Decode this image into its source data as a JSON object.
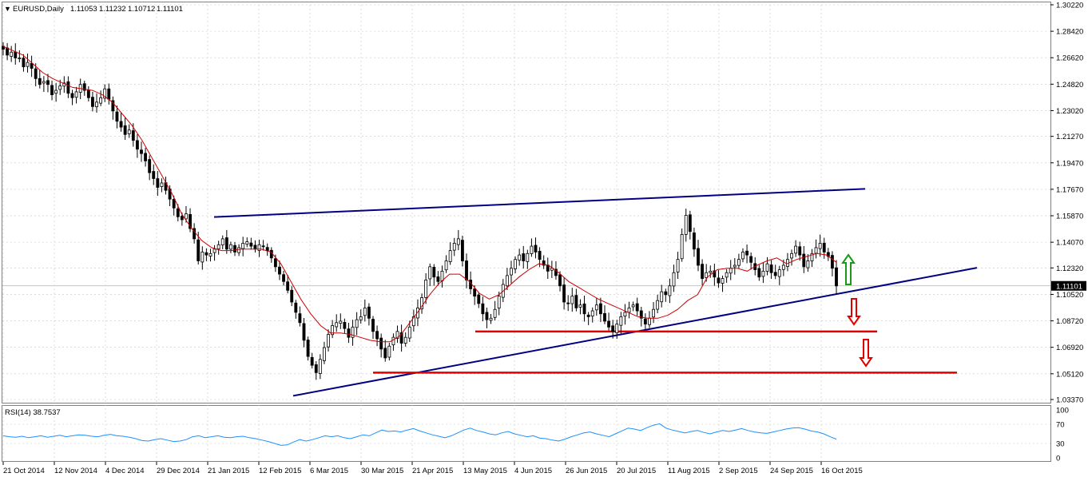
{
  "header": {
    "menu_glyph": "▼",
    "symbol": "EURUSD,Daily",
    "open": "1.11053",
    "high": "1.11232",
    "low": "1.10712",
    "close": "1.11101"
  },
  "rsi_panel": {
    "label": "RSI(14) 38.7537",
    "levels": [
      "100",
      "70",
      "30",
      "0"
    ]
  },
  "chart_data": [
    {
      "type": "candlestick",
      "symbol": "EURUSD",
      "timeframe": "Daily",
      "ylim": [
        1.0337,
        1.3022
      ],
      "y_ticks": [
        "1.30220",
        "1.28420",
        "1.26620",
        "1.24820",
        "1.23020",
        "1.21270",
        "1.19470",
        "1.17670",
        "1.15870",
        "1.14070",
        "1.12320",
        "1.10520",
        "1.08720",
        "1.06920",
        "1.05120",
        "1.03370"
      ],
      "current_price_label": "1.11101",
      "current_price": 1.11101,
      "x_ticks": [
        "21 Oct 2014",
        "12 Nov 2014",
        "4 Dec 2014",
        "29 Dec 2014",
        "21 Jan 2015",
        "12 Feb 2015",
        "6 Mar 2015",
        "30 Mar 2015",
        "21 Apr 2015",
        "13 May 2015",
        "4 Jun 2015",
        "26 Jun 2015",
        "20 Jul 2015",
        "11 Aug 2015",
        "2 Sep 2015",
        "24 Sep 2015",
        "16 Oct 2015"
      ],
      "colors": {
        "candle": "#000000",
        "moving_average": "#cc0000",
        "trendline": "#000080",
        "support": "#e00000",
        "arrow_up": "#1a9a1a",
        "arrow_down": "#e00000",
        "grid": "#c8c8c8"
      },
      "grid": true,
      "series": [
        {
          "role": "candles",
          "approx_close": [
            1.272,
            1.268,
            1.27,
            1.266,
            1.266,
            1.26,
            1.263,
            1.259,
            1.252,
            1.248,
            1.25,
            1.248,
            1.241,
            1.244,
            1.247,
            1.249,
            1.242,
            1.239,
            1.243,
            1.248,
            1.244,
            1.239,
            1.233,
            1.236,
            1.239,
            1.245,
            1.238,
            1.23,
            1.223,
            1.219,
            1.214,
            1.217,
            1.21,
            1.204,
            1.201,
            1.196,
            1.188,
            1.184,
            1.178,
            1.181,
            1.176,
            1.17,
            1.164,
            1.158,
            1.156,
            1.16,
            1.15,
            1.143,
            1.128,
            1.134,
            1.132,
            1.133,
            1.136,
            1.139,
            1.143,
            1.136,
            1.139,
            1.134,
            1.137,
            1.14,
            1.141,
            1.138,
            1.136,
            1.139,
            1.138,
            1.135,
            1.13,
            1.124,
            1.119,
            1.114,
            1.108,
            1.1,
            1.093,
            1.086,
            1.074,
            1.063,
            1.057,
            1.052,
            1.061,
            1.069,
            1.078,
            1.084,
            1.086,
            1.087,
            1.082,
            1.076,
            1.083,
            1.088,
            1.09,
            1.096,
            1.089,
            1.08,
            1.075,
            1.068,
            1.062,
            1.07,
            1.076,
            1.08,
            1.072,
            1.076,
            1.083,
            1.09,
            1.096,
            1.103,
            1.115,
            1.124,
            1.117,
            1.114,
            1.121,
            1.128,
            1.135,
            1.14,
            1.143,
            1.128,
            1.115,
            1.109,
            1.104,
            1.099,
            1.092,
            1.088,
            1.089,
            1.095,
            1.104,
            1.112,
            1.118,
            1.123,
            1.129,
            1.132,
            1.128,
            1.133,
            1.138,
            1.134,
            1.129,
            1.125,
            1.121,
            1.123,
            1.118,
            1.111,
            1.1,
            1.099,
            1.104,
            1.096,
            1.098,
            1.092,
            1.09,
            1.094,
            1.098,
            1.092,
            1.087,
            1.083,
            1.08,
            1.085,
            1.09,
            1.093,
            1.096,
            1.098,
            1.094,
            1.089,
            1.085,
            1.089,
            1.095,
            1.101,
            1.107,
            1.105,
            1.111,
            1.12,
            1.129,
            1.146,
            1.159,
            1.148,
            1.136,
            1.125,
            1.116,
            1.12,
            1.121,
            1.117,
            1.113,
            1.116,
            1.12,
            1.123,
            1.125,
            1.129,
            1.134,
            1.132,
            1.127,
            1.122,
            1.117,
            1.121,
            1.126,
            1.12,
            1.118,
            1.122,
            1.125,
            1.129,
            1.133,
            1.138,
            1.132,
            1.124,
            1.128,
            1.133,
            1.137,
            1.14,
            1.134,
            1.131,
            1.123,
            1.111
          ]
        },
        {
          "role": "moving_average",
          "approx_values": [
            1.274,
            1.271,
            1.268,
            1.262,
            1.256,
            1.252,
            1.249,
            1.246,
            1.245,
            1.244,
            1.241,
            1.236,
            1.228,
            1.22,
            1.21,
            1.198,
            1.186,
            1.174,
            1.16,
            1.15,
            1.142,
            1.137,
            1.135,
            1.135,
            1.136,
            1.136,
            1.136,
            1.134,
            1.126,
            1.114,
            1.102,
            1.092,
            1.084,
            1.079,
            1.079,
            1.078,
            1.076,
            1.074,
            1.073,
            1.073,
            1.077,
            1.086,
            1.095,
            1.105,
            1.113,
            1.119,
            1.119,
            1.114,
            1.106,
            1.102,
            1.105,
            1.111,
            1.117,
            1.122,
            1.126,
            1.125,
            1.12,
            1.114,
            1.11,
            1.106,
            1.102,
            1.099,
            1.096,
            1.093,
            1.09,
            1.089,
            1.089,
            1.091,
            1.095,
            1.101,
            1.105,
            1.117,
            1.122,
            1.123,
            1.123,
            1.121,
            1.125,
            1.128,
            1.13,
            1.126,
            1.129,
            1.131,
            1.133,
            1.132,
            1.127
          ]
        },
        {
          "role": "rsi",
          "name": "RSI(14)",
          "approx_values": [
            46,
            44,
            43,
            45,
            42,
            44,
            46,
            43,
            45,
            47,
            44,
            46,
            48,
            47,
            45,
            44,
            47,
            49,
            46,
            45,
            43,
            40,
            36,
            35,
            38,
            40,
            37,
            34,
            35,
            38,
            44,
            46,
            42,
            44,
            46,
            43,
            42,
            44,
            45,
            42,
            40,
            37,
            34,
            30,
            26,
            27,
            33,
            38,
            35,
            38,
            42,
            46,
            44,
            46,
            42,
            40,
            44,
            48,
            46,
            52,
            58,
            55,
            56,
            54,
            58,
            61,
            56,
            52,
            48,
            45,
            42,
            46,
            52,
            58,
            62,
            57,
            54,
            50,
            48,
            52,
            55,
            50,
            47,
            44,
            46,
            41,
            40,
            37,
            35,
            39,
            44,
            48,
            52,
            54,
            50,
            47,
            44,
            50,
            56,
            62,
            60,
            57,
            63,
            68,
            71,
            62,
            58,
            55,
            52,
            55,
            57,
            53,
            50,
            54,
            57,
            55,
            58,
            61,
            57,
            54,
            52,
            51,
            54,
            57,
            60,
            62,
            63,
            60,
            56,
            54,
            50,
            44,
            39
          ]
        }
      ],
      "annotations": [
        {
          "type": "trendline",
          "label": "resistance",
          "from": [
            "21 Jan 2015",
            1.1578
          ],
          "to": [
            "16 Oct 2015+",
            1.177
          ]
        },
        {
          "type": "trendline",
          "label": "rising support",
          "from": [
            "6 Mar 2015",
            1.0362
          ],
          "to": [
            "16 Oct 2015+",
            1.1233
          ]
        },
        {
          "type": "hline",
          "label": "support",
          "y": 1.08
        },
        {
          "type": "hline",
          "label": "support",
          "y": 1.052
        },
        {
          "type": "arrow",
          "direction": "up"
        },
        {
          "type": "arrow",
          "direction": "down"
        },
        {
          "type": "arrow",
          "direction": "down"
        }
      ]
    },
    {
      "type": "line",
      "name": "RSI(14)",
      "ylim": [
        0,
        100
      ],
      "y_ticks": [
        "100",
        "70",
        "30",
        "0"
      ],
      "last_value": 38.7537
    }
  ]
}
